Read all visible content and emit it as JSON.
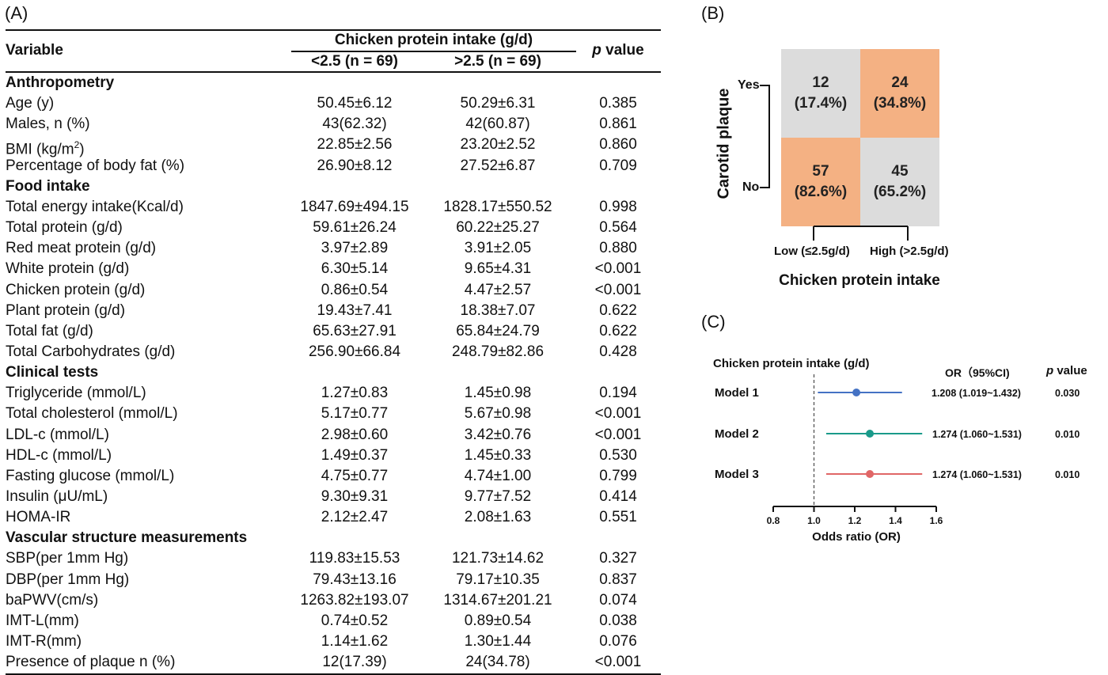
{
  "panel_a": {
    "label": "(A)",
    "header": {
      "variable": "Variable",
      "group": "Chicken protein intake (g/d)",
      "low": "<2.5 (n = 69)",
      "high": ">2.5 (n = 69)",
      "p_italic": "p",
      "p_rest": " value"
    },
    "rows": [
      {
        "section": true,
        "var": "Anthropometry"
      },
      {
        "var": "Age (y)",
        "low": "50.45±6.12",
        "high": "50.29±6.31",
        "p": "0.385"
      },
      {
        "var": "Males, n (%)",
        "low": "43(62.32)",
        "high": "42(60.87)",
        "p": "0.861"
      },
      {
        "var": "BMI (kg/m",
        "sup": "2",
        "var_tail": ")",
        "low": "22.85±2.56",
        "high": "23.20±2.52",
        "p": "0.860"
      },
      {
        "var": "Percentage of body fat (%)",
        "low": "26.90±8.12",
        "high": "27.52±6.87",
        "p": "0.709"
      },
      {
        "section": true,
        "var": "Food intake"
      },
      {
        "var": "Total energy intake(Kcal/d)",
        "low": "1847.69±494.15",
        "high": "1828.17±550.52",
        "p": "0.998"
      },
      {
        "var": "Total protein (g/d)",
        "low": "59.61±26.24",
        "high": "60.22±25.27",
        "p": "0.564"
      },
      {
        "var": "Red meat protein (g/d)",
        "low": "3.97±2.89",
        "high": "3.91±2.05",
        "p": "0.880"
      },
      {
        "var": "White protein (g/d)",
        "low": "6.30±5.14",
        "high": "9.65±4.31",
        "p": "<0.001"
      },
      {
        "var": "Chicken protein (g/d)",
        "low": "0.86±0.54",
        "high": "4.47±2.57",
        "p": "<0.001"
      },
      {
        "var": "Plant protein (g/d)",
        "low": "19.43±7.41",
        "high": "18.38±7.07",
        "p": "0.622"
      },
      {
        "var": "Total fat (g/d)",
        "low": "65.63±27.91",
        "high": "65.84±24.79",
        "p": "0.622"
      },
      {
        "var": "Total Carbohydrates (g/d)",
        "low": "256.90±66.84",
        "high": "248.79±82.86",
        "p": "0.428"
      },
      {
        "section": true,
        "var": "Clinical tests"
      },
      {
        "var": "Triglyceride (mmol/L)",
        "low": "1.27±0.83",
        "high": "1.45±0.98",
        "p": "0.194"
      },
      {
        "var": "Total cholesterol (mmol/L)",
        "low": "5.17±0.77",
        "high": "5.67±0.98",
        "p": "<0.001"
      },
      {
        "var": "LDL-c (mmol/L)",
        "low": "2.98±0.60",
        "high": "3.42±0.76",
        "p": "<0.001"
      },
      {
        "var": "HDL-c (mmol/L)",
        "low": "1.49±0.37",
        "high": "1.45±0.33",
        "p": "0.530"
      },
      {
        "var": "Fasting glucose (mmol/L)",
        "low": "4.75±0.77",
        "high": "4.74±1.00",
        "p": "0.799"
      },
      {
        "var": "Insulin (μU/mL)",
        "low": "9.30±9.31",
        "high": "9.77±7.52",
        "p": "0.414"
      },
      {
        "var": "HOMA-IR",
        "low": "2.12±2.47",
        "high": "2.08±1.63",
        "p": "0.551"
      },
      {
        "section": true,
        "var": "Vascular structure measurements"
      },
      {
        "var": "SBP(per 1mm Hg)",
        "low": "119.83±15.53",
        "high": "121.73±14.62",
        "p": "0.327"
      },
      {
        "var": "DBP(per 1mm Hg)",
        "low": "79.43±13.16",
        "high": "79.17±10.35",
        "p": "0.837"
      },
      {
        "var": "baPWV(cm/s)",
        "low": "1263.82±193.07",
        "high": "1314.67±201.21",
        "p": "0.074"
      },
      {
        "var": "IMT-L(mm)",
        "low": "0.74±0.52",
        "high": "0.89±0.54",
        "p": "0.038"
      },
      {
        "var": "IMT-R(mm)",
        "low": "1.14±1.62",
        "high": "1.30±1.44",
        "p": "0.076"
      },
      {
        "var": "Presence of plaque n (%)",
        "low": "12(17.39)",
        "high": "24(34.78)",
        "p": "<0.001"
      }
    ]
  },
  "panel_b": {
    "label": "(B)",
    "y_title": "Carotid plaque",
    "y_yes": "Yes",
    "y_no": "No",
    "x_low": "Low (≤2.5g/d)",
    "x_high": "High (>2.5g/d)",
    "x_title": "Chicken protein intake",
    "cells": {
      "yes_low": {
        "n": "12",
        "pct": "(17.4%)"
      },
      "yes_high": {
        "n": "24",
        "pct": "(34.8%)"
      },
      "no_low": {
        "n": "57",
        "pct": "(82.6%)"
      },
      "no_high": {
        "n": "45",
        "pct": "(65.2%)"
      }
    },
    "colors": {
      "highlight": "#f4b183",
      "neutral": "#dcdcdc"
    }
  },
  "panel_c": {
    "label": "(C)",
    "header_left": "Chicken protein intake (g/d)",
    "header_or": "OR（95%CI)",
    "header_p_italic": "p",
    "header_p_rest": " value",
    "xlabel": "Odds ratio (OR)"
  },
  "chart_data": {
    "type": "scatter",
    "subtype": "forest-plot",
    "title": "",
    "xlabel": "Odds ratio (OR)",
    "ylabel": "",
    "xlim": [
      0.8,
      1.6
    ],
    "xticks": [
      "0.8",
      "1.0",
      "1.2",
      "1.4",
      "1.6"
    ],
    "reference_line": 1.0,
    "series": [
      {
        "name": "Model 1",
        "or": 1.208,
        "lower": 1.019,
        "upper": 1.432,
        "or_text": "1.208 (1.019~1.432)",
        "p": "0.030",
        "color": "#4472c4"
      },
      {
        "name": "Model 2",
        "or": 1.274,
        "lower": 1.06,
        "upper": 1.531,
        "or_text": "1.274 (1.060~1.531)",
        "p": "0.010",
        "color": "#1a9a8a"
      },
      {
        "name": "Model 3",
        "or": 1.274,
        "lower": 1.06,
        "upper": 1.531,
        "or_text": "1.274 (1.060~1.531)",
        "p": "0.010",
        "color": "#e06666"
      }
    ]
  }
}
